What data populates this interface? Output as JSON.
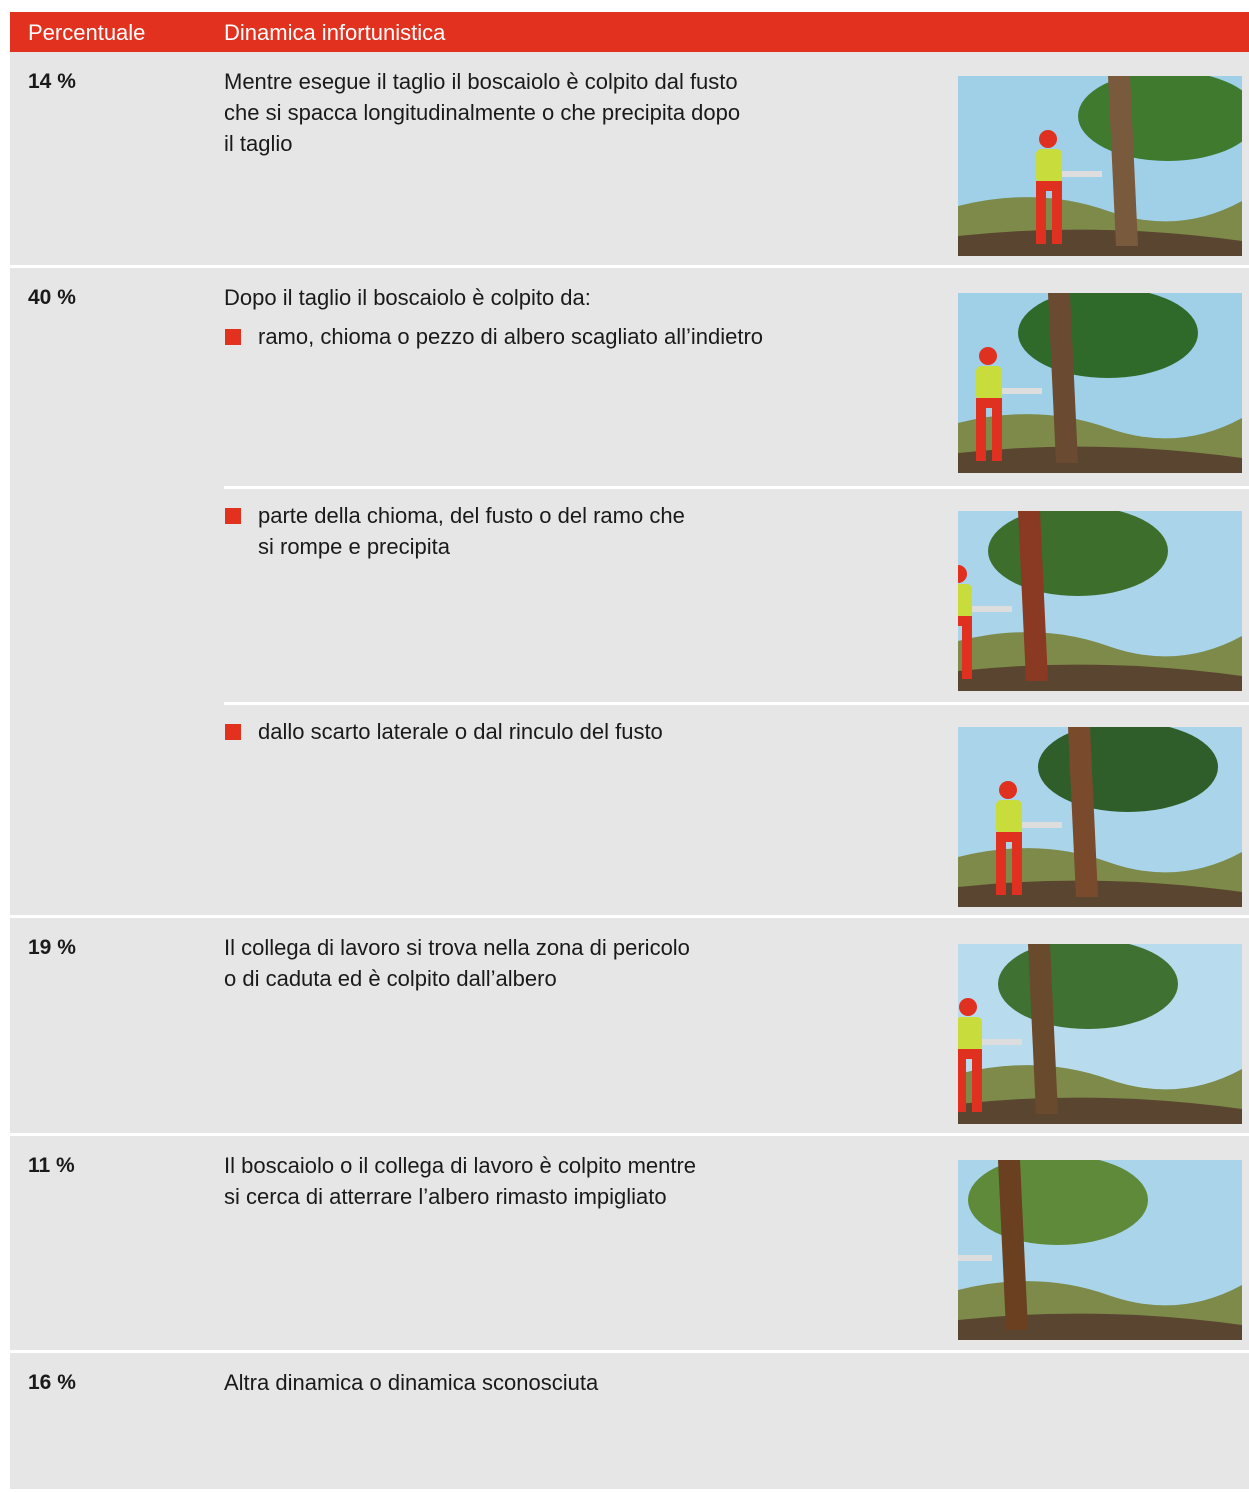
{
  "header": {
    "columns": [
      "Percentuale",
      "Dinamica infortunistica"
    ]
  },
  "rows": [
    {
      "percentage": "14 %",
      "text": [
        "Mentre esegue il taglio il boscaiolo è colpito dal fusto",
        "che si spacca longitudinalmente o che precipita dopo",
        "il taglio"
      ]
    },
    {
      "percentage": "40 %",
      "text": [
        "Dopo il taglio il boscaiolo è colpito da:"
      ],
      "bullets": [
        [
          "ramo, chioma o pezzo di albero scagliato all’indietro"
        ],
        [
          "parte della chioma, del fusto o del ramo che",
          "si rompe e precipita"
        ],
        [
          "dallo scarto laterale o dal rinculo del fusto"
        ]
      ]
    },
    {
      "percentage": "19 %",
      "text": [
        "Il collega di lavoro si trova nella zona di pericolo",
        "o di caduta ed è colpito dall’albero"
      ]
    },
    {
      "percentage": "11 %",
      "text": [
        "Il boscaiolo o il collega di lavoro è colpito mentre",
        "si cerca di atterrare l’albero rimasto impigliato"
      ]
    },
    {
      "percentage": "16 %",
      "text": [
        "Altra dinamica o dinamica sconosciuta"
      ]
    }
  ]
}
